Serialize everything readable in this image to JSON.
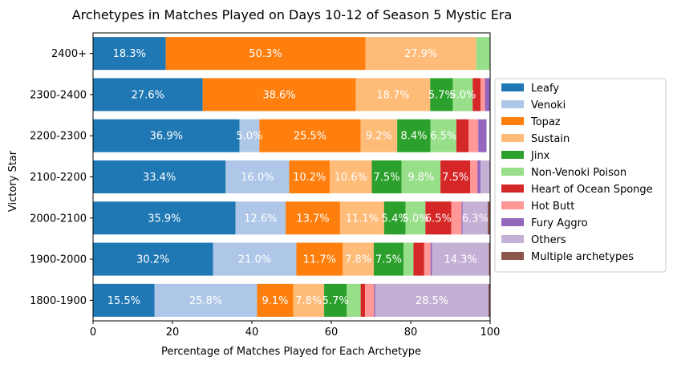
{
  "chart_data": {
    "type": "bar",
    "orientation": "horizontal",
    "stacked": true,
    "title": "Archetypes in Matches Played on Days 10-12 of Season 5 Mystic Era",
    "xlabel": "Percentage of Matches Played for Each Archetype",
    "ylabel": "Victory Star",
    "xlim": [
      0,
      100
    ],
    "xticks": [
      "0",
      "20",
      "40",
      "60",
      "80",
      "100"
    ],
    "legend_position": "right",
    "grid": false,
    "categories": [
      "2400+",
      "2300-2400",
      "2200-2300",
      "2100-2200",
      "2000-2100",
      "1900-2000",
      "1800-1900"
    ],
    "series": [
      {
        "name": "Leafy",
        "color": "#1f77b4",
        "values": [
          18.3,
          27.6,
          36.9,
          33.4,
          35.9,
          30.2,
          15.5
        ]
      },
      {
        "name": "Venoki",
        "color": "#aec7e8",
        "values": [
          0.0,
          0.0,
          5.0,
          16.0,
          12.6,
          21.0,
          25.8
        ]
      },
      {
        "name": "Topaz",
        "color": "#ff7f0e",
        "values": [
          50.3,
          38.6,
          25.5,
          10.2,
          13.7,
          11.7,
          9.1
        ]
      },
      {
        "name": "Sustain",
        "color": "#ffbb78",
        "values": [
          27.9,
          18.7,
          9.2,
          10.6,
          11.1,
          7.8,
          7.8
        ]
      },
      {
        "name": "Jinx",
        "color": "#2ca02c",
        "values": [
          0.0,
          5.7,
          8.4,
          7.5,
          5.4,
          7.5,
          5.7
        ]
      },
      {
        "name": "Non-Venoki Poison",
        "color": "#98df8a",
        "values": [
          3.5,
          5.0,
          6.5,
          9.8,
          5.0,
          2.5,
          3.5
        ]
      },
      {
        "name": "Heart of Ocean Sponge",
        "color": "#d62728",
        "values": [
          0.0,
          2.0,
          3.1,
          7.5,
          6.5,
          2.7,
          1.1
        ]
      },
      {
        "name": "Hot Butt",
        "color": "#ff9896",
        "values": [
          0.0,
          1.1,
          2.4,
          1.8,
          2.6,
          1.6,
          2.3
        ]
      },
      {
        "name": "Fury Aggro",
        "color": "#9467bd",
        "values": [
          0.0,
          1.3,
          2.1,
          0.8,
          0.3,
          0.4,
          0.3
        ]
      },
      {
        "name": "Others",
        "color": "#c5b0d5",
        "values": [
          0.0,
          0.0,
          0.0,
          2.4,
          6.3,
          14.3,
          28.5
        ]
      },
      {
        "name": "Multiple archetypes",
        "color": "#8c564b",
        "values": [
          0.0,
          0.0,
          0.0,
          0.0,
          0.5,
          0.5,
          0.5
        ]
      }
    ],
    "data_label_min": 5.0
  }
}
